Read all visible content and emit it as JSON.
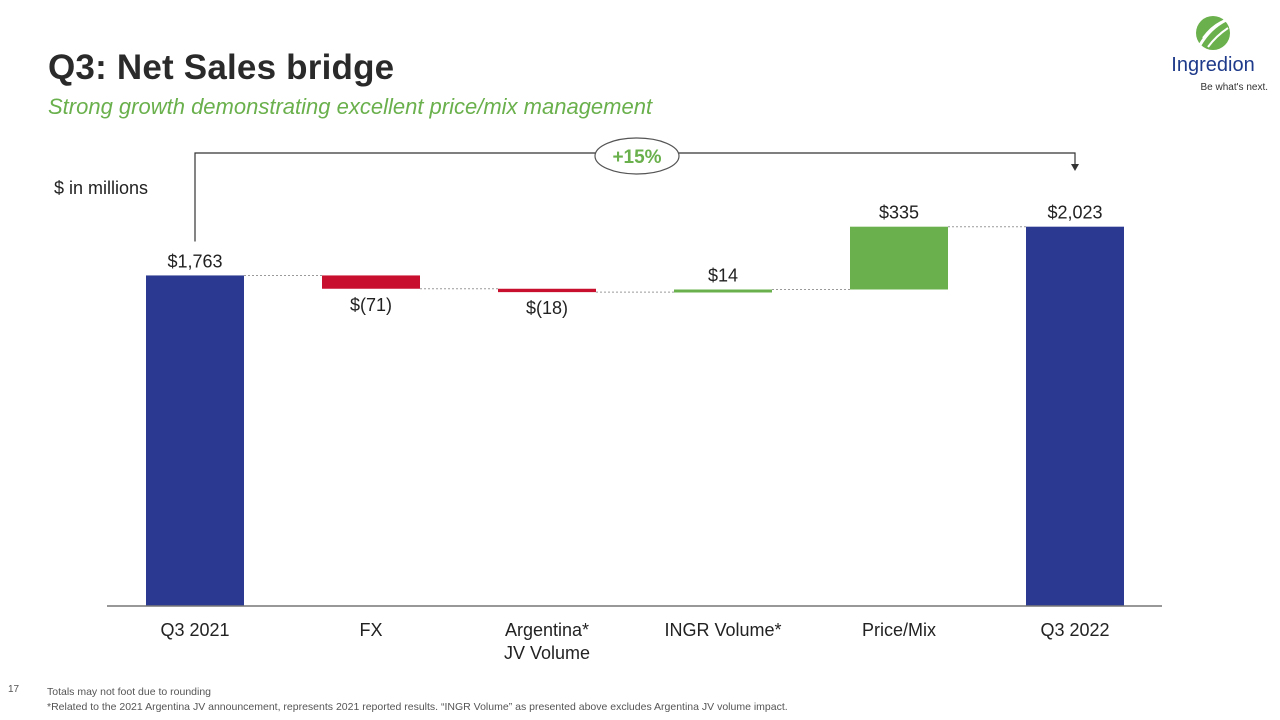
{
  "header": {
    "title": "Q3: Net Sales bridge",
    "subtitle": "Strong growth demonstrating excellent price/mix management"
  },
  "logo": {
    "name": "Ingredion",
    "tagline": "Be what's next."
  },
  "unit_label": "$ in millions",
  "growth_badge": "+15%",
  "colors": {
    "total": "#2b3990",
    "decrease": "#c8102e",
    "increase": "#6ab04c"
  },
  "chart_data": {
    "type": "bar",
    "subtype": "waterfall",
    "categories": [
      "Q3 2021",
      "FX",
      "Argentina* JV Volume",
      "INGR Volume*",
      "Price/Mix",
      "Q3 2022"
    ],
    "values": [
      1763,
      -71,
      -18,
      14,
      335,
      2023
    ],
    "kinds": [
      "total",
      "decrease",
      "decrease",
      "increase",
      "increase",
      "total"
    ],
    "data_labels": [
      "$1,763",
      "$(71)",
      "$(18)",
      "$14",
      "$335",
      "$2,023"
    ],
    "ylabel": "$ in millions",
    "grid": false,
    "annotations": [
      "+15%"
    ]
  },
  "footer": {
    "page_number": "17",
    "notes": [
      "Totals may not foot due to rounding",
      "*Related to the 2021 Argentina JV announcement, represents 2021 reported results. “INGR Volume” as presented above excludes Argentina JV volume impact."
    ]
  }
}
